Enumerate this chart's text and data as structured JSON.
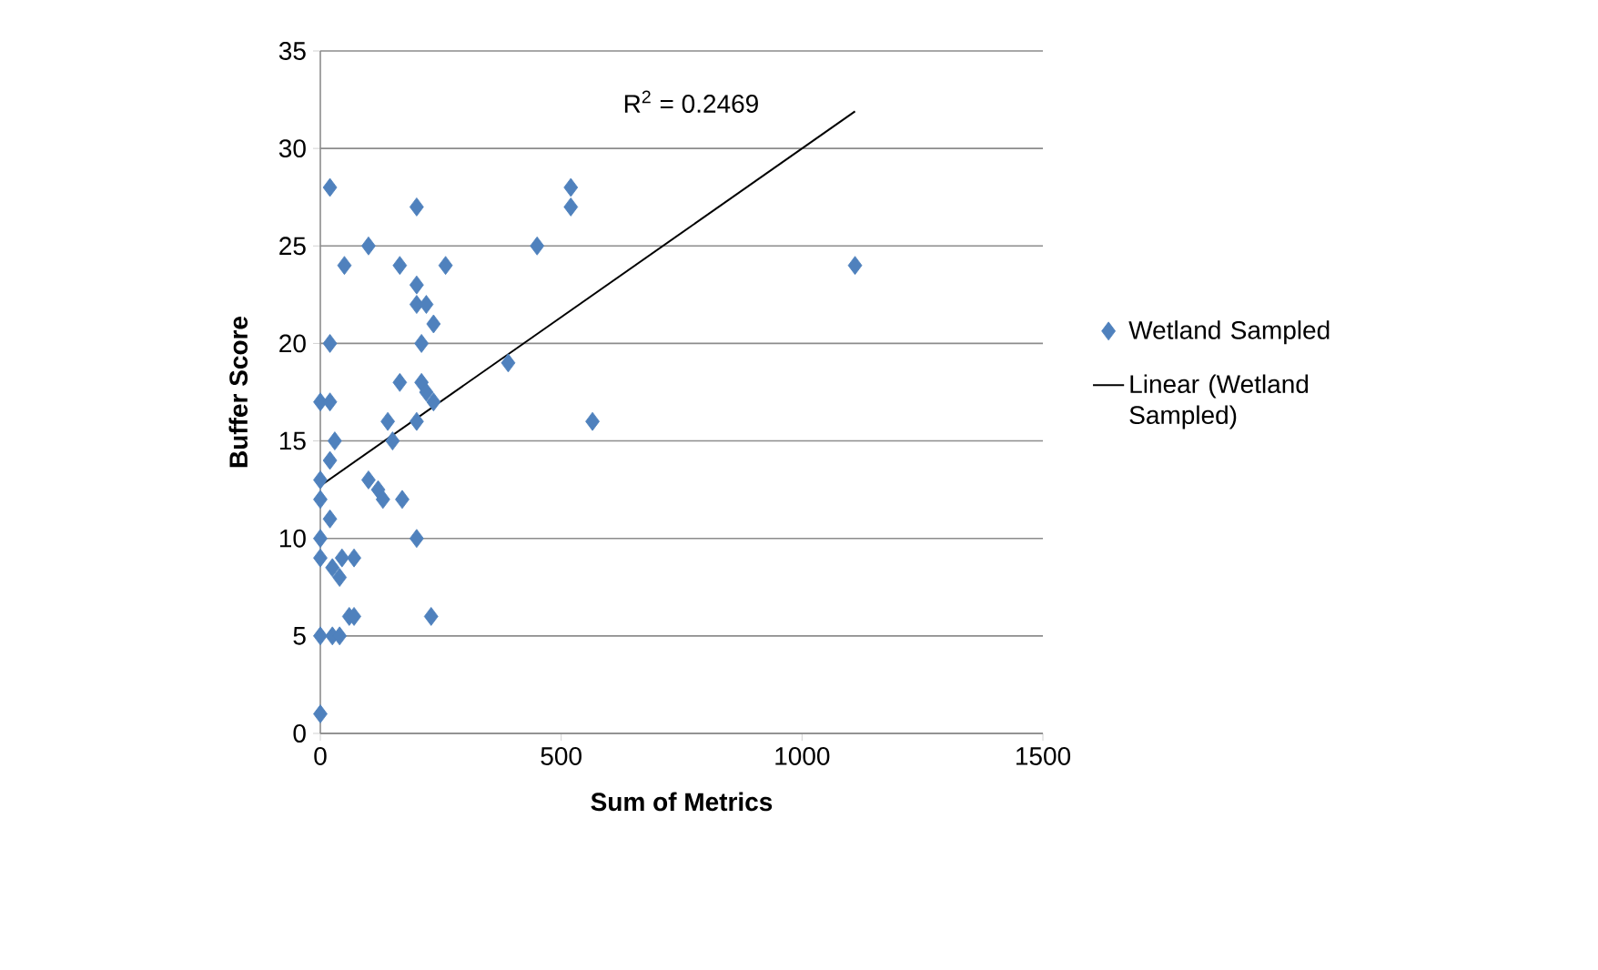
{
  "chart_data": {
    "type": "scatter",
    "xlabel": "Sum of Metrics",
    "ylabel": "Buffer Score",
    "annotations": [
      "R$^{2}$ = 0.2469"
    ],
    "xlim": [
      0,
      1500
    ],
    "ylim": [
      0,
      35
    ],
    "xticks": [
      0,
      500,
      1000,
      1500
    ],
    "yticks": [
      0,
      5,
      10,
      15,
      20,
      25,
      30,
      35
    ],
    "grid": "y",
    "legend": "right",
    "series": [
      {
        "name": "Wetland Sampled",
        "color": "#4f81bd",
        "marker": "diamond",
        "x": [
          20,
          200,
          100,
          50,
          165,
          260,
          200,
          200,
          220,
          235,
          210,
          20,
          390,
          165,
          210,
          220,
          235,
          0,
          20,
          140,
          200,
          30,
          150,
          20,
          100,
          120,
          130,
          170,
          0,
          0,
          20,
          0,
          200,
          0,
          70,
          45,
          25,
          40,
          60,
          0,
          25,
          40,
          70,
          230,
          0,
          520,
          520,
          450,
          1110,
          565
        ],
        "values": [
          28,
          27,
          25,
          24,
          24,
          24,
          23,
          22,
          22,
          21,
          20,
          20,
          19,
          18,
          18,
          17.5,
          17,
          17,
          17,
          16,
          16,
          15,
          15,
          14,
          13,
          12.5,
          12,
          12,
          13,
          12,
          11,
          10,
          10,
          9,
          9,
          9,
          8.5,
          8,
          6,
          5,
          5,
          5,
          6,
          6,
          1,
          28,
          27,
          25,
          24,
          16
        ]
      },
      {
        "name": "Linear (Wetland Sampled)",
        "type": "line",
        "marker": "none",
        "color": "#000000",
        "x": [
          0,
          1110
        ],
        "values": [
          12.7,
          31.9
        ]
      }
    ]
  }
}
